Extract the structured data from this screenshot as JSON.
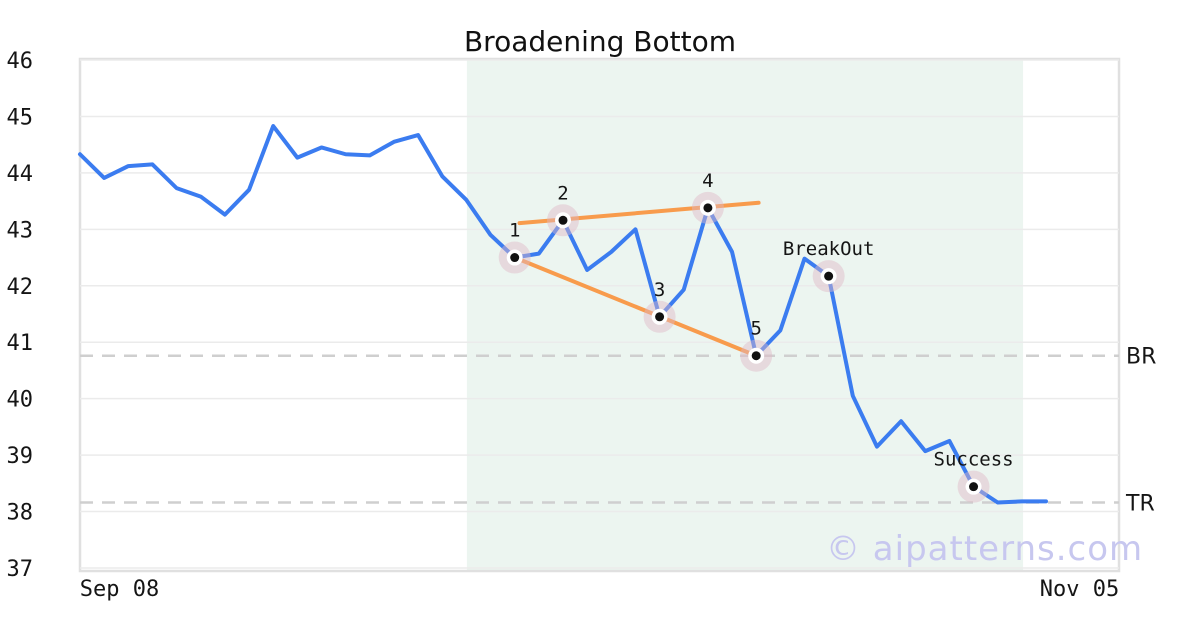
{
  "chart_data": {
    "type": "line",
    "title": "Broadening Bottom",
    "xlabel": "",
    "ylabel": "",
    "ylim": [
      36.95,
      46.02
    ],
    "y_ticks": [
      46,
      45,
      44,
      43,
      42,
      41,
      40,
      39,
      38,
      37
    ],
    "x_tick_labels": [
      {
        "label": "Sep 08",
        "fx": 0.038
      },
      {
        "label": "Nov 05",
        "fx": 0.962
      }
    ],
    "grid": "horizontal",
    "legend": "none",
    "series": [
      {
        "name": "price",
        "values": [
          44.33,
          43.91,
          44.12,
          44.15,
          43.73,
          43.58,
          43.26,
          43.7,
          44.83,
          44.27,
          44.45,
          44.33,
          44.31,
          44.55,
          44.67,
          43.94,
          43.52,
          42.9,
          42.5,
          42.57,
          43.16,
          42.28,
          42.6,
          43,
          41.45,
          41.93,
          43.38,
          42.6,
          40.76,
          41.21,
          42.48,
          42.17,
          40.05,
          39.15,
          39.6,
          39.07,
          39.25,
          38.44,
          38.16,
          38.18,
          38.18
        ]
      }
    ],
    "annotations": [
      {
        "label": "1",
        "index": 18,
        "value": 42.5
      },
      {
        "label": "2",
        "index": 20,
        "value": 43.16
      },
      {
        "label": "3",
        "index": 24,
        "value": 41.45
      },
      {
        "label": "4",
        "index": 26,
        "value": 43.38
      },
      {
        "label": "5",
        "index": 28,
        "value": 40.76
      },
      {
        "label": "BreakOut",
        "index": 31,
        "value": 42.17
      },
      {
        "label": "Success",
        "index": 37,
        "value": 38.44
      }
    ],
    "trendlines": [
      {
        "name": "upper",
        "i1": 18.2,
        "v1": 43.11,
        "i2": 28.1,
        "v2": 43.47
      },
      {
        "name": "lower",
        "i1": 18,
        "v1": 42.5,
        "i2": 28,
        "v2": 40.76
      }
    ],
    "hlines": [
      {
        "label": "BR",
        "value": 40.76
      },
      {
        "label": "TR",
        "value": 38.16
      }
    ],
    "shaded_region": {
      "i1": 16.02,
      "i2": 39.05
    },
    "colors": {
      "line": "#3b7cf0",
      "trend": "#f89b4c",
      "halo": "rgba(224,183,197,0.45)",
      "marker_dot": "#111111",
      "marker_ring": "#ffffff",
      "grid": "#ebebeb",
      "spine": "#e0e0e0",
      "dashed": "#cfcfcf",
      "shaded": "#ecf5f0",
      "text": "#151515",
      "watermark": "#c7c7ef"
    }
  },
  "watermark": {
    "text": "© aipatterns.com"
  }
}
